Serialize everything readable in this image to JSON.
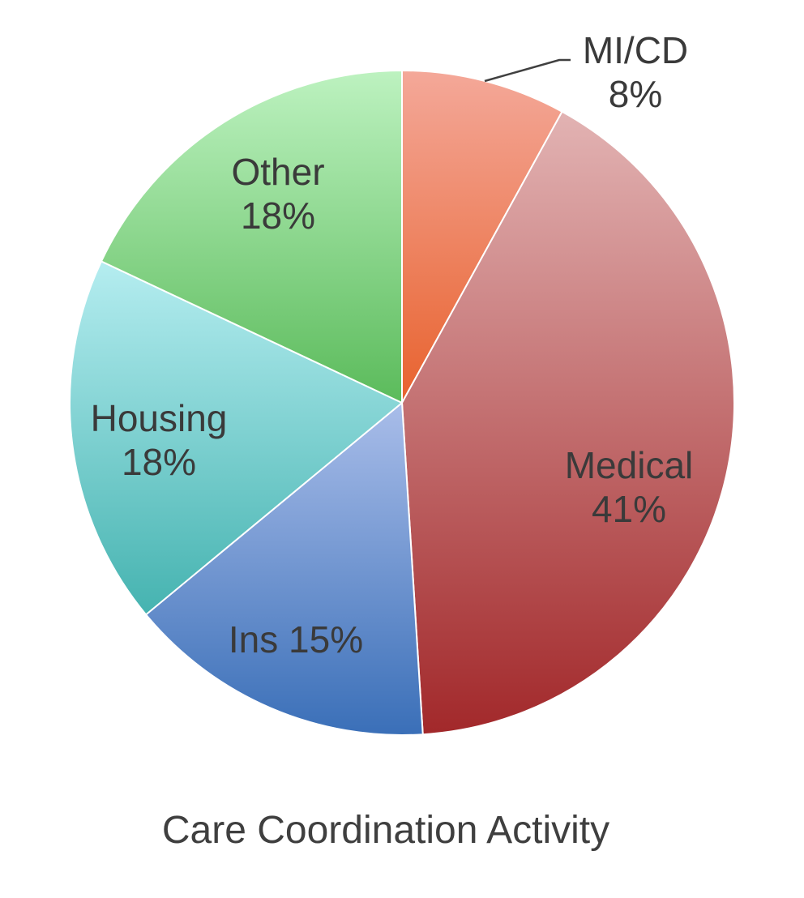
{
  "chart_data": {
    "type": "pie",
    "title": "Care Coordination Activity",
    "start_angle_deg": 0,
    "direction": "clockwise",
    "slices": [
      {
        "label": "MI/CD",
        "percent_label": "8%",
        "value": 8,
        "color_top": "#f4a899",
        "color_bottom": "#e8622e"
      },
      {
        "label": "Medical",
        "percent_label": "41%",
        "value": 41,
        "color_top": "#e2b3b3",
        "color_bottom": "#a2282a"
      },
      {
        "label": "Ins",
        "percent_label": "15%",
        "value": 15,
        "color_top": "#a9bde9",
        "color_bottom": "#3a6fb8"
      },
      {
        "label": "Housing",
        "percent_label": "18%",
        "value": 18,
        "color_top": "#b5edf0",
        "color_bottom": "#45b3b0"
      },
      {
        "label": "Other",
        "percent_label": "18%",
        "value": 18,
        "color_top": "#bdf2c0",
        "color_bottom": "#5bbb5b"
      }
    ]
  }
}
